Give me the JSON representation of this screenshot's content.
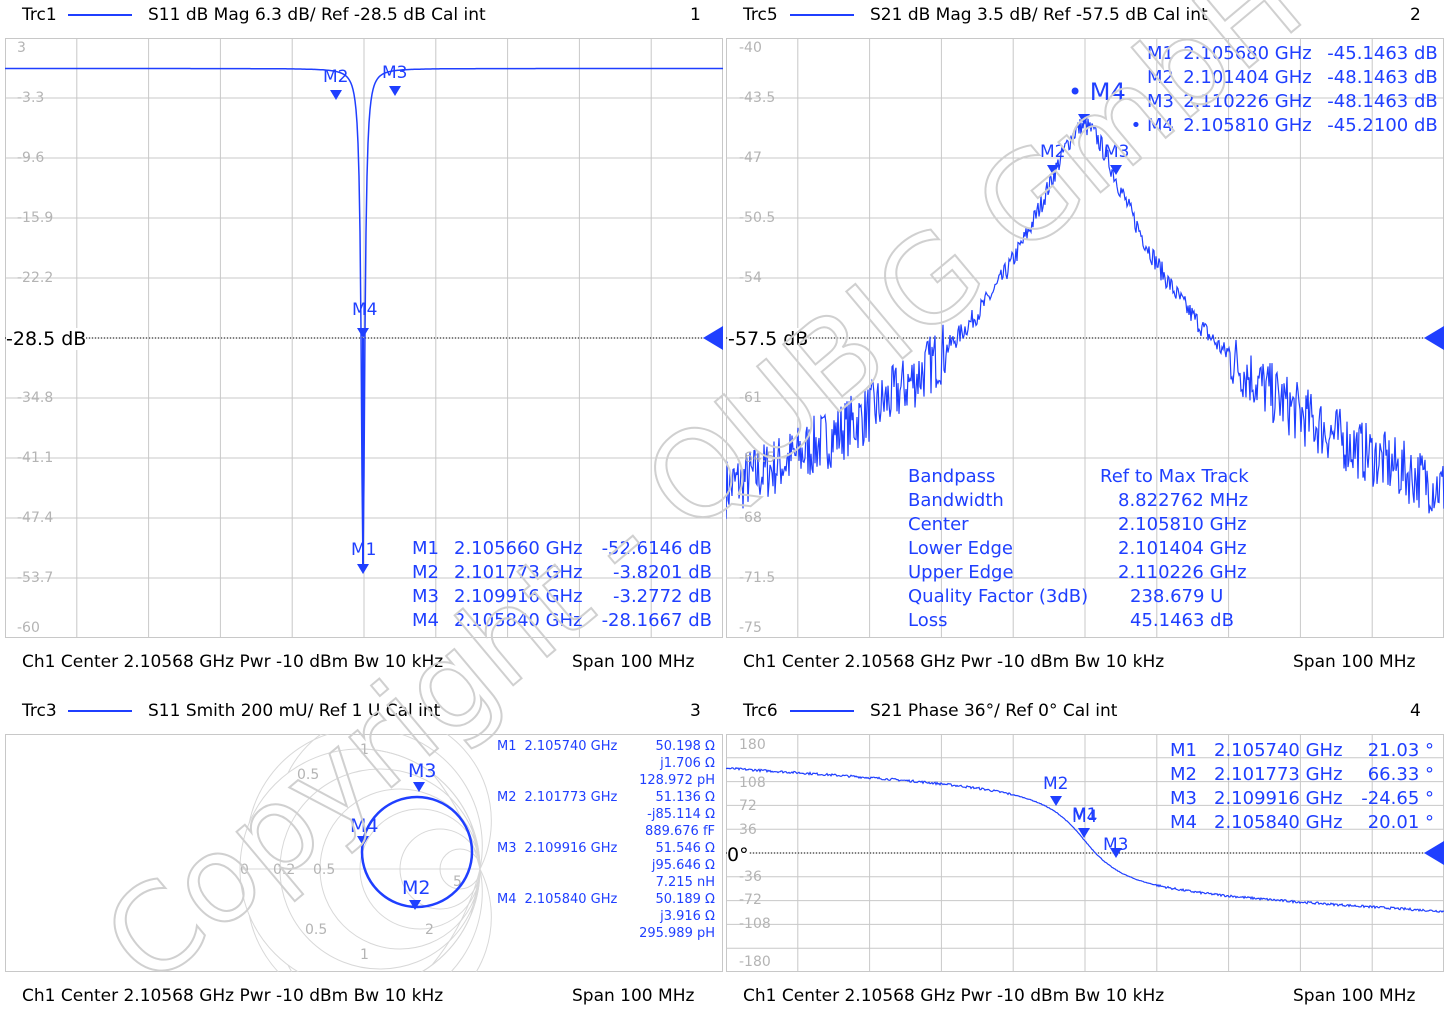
{
  "panels": [
    {
      "trace": "Trc1",
      "meas": "S11  dB Mag  6.3 dB/ Ref -28.5 dB  Cal int",
      "num": "1",
      "yticks": [
        "3",
        "-3.3",
        "-9.6",
        "-15.9",
        "-22.2",
        "-28.5 dB",
        "-34.8",
        "-41.1",
        "-47.4",
        "-53.7",
        "-60"
      ],
      "ref_label": "-28.5 dB",
      "markers": [
        {
          "id": "M1",
          "freq": "2.105660 GHz",
          "val": "-52.6146 dB"
        },
        {
          "id": "M2",
          "freq": "2.101773 GHz",
          "val": "-3.8201 dB"
        },
        {
          "id": "M3",
          "freq": "2.109916 GHz",
          "val": "-3.2772 dB"
        },
        {
          "id": "M4",
          "freq": "2.105840 GHz",
          "val": "-28.1667 dB"
        }
      ],
      "footer_left": "Ch1  Center  2.10568 GHz  Pwr  -10 dBm  Bw  10 kHz",
      "footer_right": "Span  100 MHz"
    },
    {
      "trace": "Trc5",
      "meas": "S21  dB Mag  3.5 dB/ Ref -57.5 dB  Cal int",
      "num": "2",
      "yticks": [
        "-40",
        "-43.5",
        "-47",
        "-50.5",
        "-54",
        "-57.5 dB",
        "-61",
        "-64.5",
        "-68",
        "-71.5",
        "-75"
      ],
      "ref_label": "-57.5 dB",
      "markers": [
        {
          "id": "M1",
          "freq": "2.105680 GHz",
          "val": "-45.1463 dB"
        },
        {
          "id": "M2",
          "freq": "2.101404 GHz",
          "val": "-48.1463 dB"
        },
        {
          "id": "M3",
          "freq": "2.110226 GHz",
          "val": "-48.1463 dB"
        },
        {
          "id": "• M4",
          "freq": "2.105810 GHz",
          "val": "-45.2100 dB"
        }
      ],
      "bandpass": {
        "labels": [
          "Bandpass",
          "Bandwidth",
          "Center",
          "Lower Edge",
          "Upper Edge",
          "Quality Factor (3dB)",
          "Loss"
        ],
        "values": [
          "Ref to Max  Track",
          "8.822762 MHz",
          "2.105810 GHz",
          "2.101404 GHz",
          "2.110226 GHz",
          "238.679 U",
          "45.1463 dB"
        ]
      },
      "footer_left": "Ch1  Center  2.10568 GHz  Pwr  -10 dBm  Bw  10 kHz",
      "footer_right": "Span  100 MHz"
    },
    {
      "trace": "Trc3",
      "meas": "S11  Smith  200 mU/ Ref 1 U  Cal int",
      "num": "3",
      "smith_labels": [
        "0",
        "0.2",
        "0.5",
        "1",
        "2",
        "5",
        "0.5",
        "1",
        "2",
        "0.5",
        "1",
        "2",
        "5"
      ],
      "markers": [
        {
          "id": "M1",
          "freq": "2.105740 GHz",
          "lines": [
            "50.198 Ω",
            "j1.706 Ω",
            "128.972 pH"
          ]
        },
        {
          "id": "M2",
          "freq": "2.101773 GHz",
          "lines": [
            "51.136 Ω",
            "-j85.114 Ω",
            "889.676 fF"
          ]
        },
        {
          "id": "M3",
          "freq": "2.109916 GHz",
          "lines": [
            "51.546 Ω",
            "j95.646 Ω",
            "7.215 nH"
          ]
        },
        {
          "id": "M4",
          "freq": "2.105840 GHz",
          "lines": [
            "50.189 Ω",
            "j3.916 Ω",
            "295.989 pH"
          ]
        }
      ],
      "footer_left": "Ch1  Center  2.10568 GHz  Pwr  -10 dBm  Bw  10 kHz",
      "footer_right": "Span  100 MHz"
    },
    {
      "trace": "Trc6",
      "meas": "S21  Phase  36°/ Ref 0°  Cal int",
      "num": "4",
      "yticks": [
        "180",
        "108",
        "72",
        "36",
        "0°",
        "-36",
        "-72",
        "-108",
        "-180"
      ],
      "ref_label": "0°",
      "markers": [
        {
          "id": "M1",
          "freq": "2.105740 GHz",
          "val": "21.03 °"
        },
        {
          "id": "M2",
          "freq": "2.101773 GHz",
          "val": "66.33 °"
        },
        {
          "id": "M3",
          "freq": "2.109916 GHz",
          "val": "-24.65 °"
        },
        {
          "id": "M4",
          "freq": "2.105840 GHz",
          "val": "20.01 °"
        }
      ],
      "footer_left": "Ch1  Center  2.10568 GHz  Pwr  -10 dBm  Bw  10 kHz",
      "footer_right": "Span  100 MHz"
    }
  ],
  "watermark": "Copyright - QUBIG GmbH",
  "trace_color": "#1f3fff",
  "grid_color": "#c8c8c8"
}
